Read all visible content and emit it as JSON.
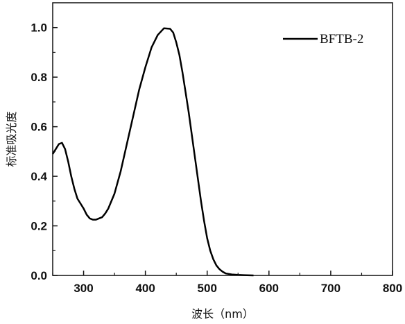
{
  "chart_data": {
    "type": "line",
    "xlabel": "波长（nm）",
    "ylabel": "标准吸光度",
    "xlim": [
      250,
      800
    ],
    "ylim": [
      0,
      1.1
    ],
    "x_ticks": [
      300,
      400,
      500,
      600,
      700,
      800
    ],
    "y_ticks": [
      0.0,
      0.2,
      0.4,
      0.6,
      0.8,
      1.0
    ],
    "x_tick_labels": [
      "300",
      "400",
      "500",
      "600",
      "700",
      "800"
    ],
    "y_tick_labels": [
      "0.0",
      "0.2",
      "0.4",
      "0.6",
      "0.8",
      "1.0"
    ],
    "grid": false,
    "legend_position": "top-right",
    "line_color": "#000000",
    "series": [
      {
        "name": "BFTB-2",
        "x": [
          250,
          255,
          260,
          265,
          270,
          275,
          280,
          285,
          290,
          295,
          300,
          305,
          310,
          315,
          320,
          325,
          330,
          335,
          340,
          350,
          360,
          370,
          380,
          390,
          400,
          410,
          420,
          430,
          440,
          445,
          450,
          455,
          460,
          465,
          470,
          475,
          480,
          485,
          490,
          495,
          500,
          505,
          510,
          515,
          520,
          525,
          530,
          540,
          550,
          560,
          575
        ],
        "y": [
          0.49,
          0.51,
          0.53,
          0.535,
          0.51,
          0.46,
          0.4,
          0.35,
          0.31,
          0.29,
          0.27,
          0.245,
          0.23,
          0.225,
          0.225,
          0.23,
          0.235,
          0.25,
          0.27,
          0.33,
          0.42,
          0.53,
          0.64,
          0.75,
          0.84,
          0.92,
          0.97,
          0.997,
          0.995,
          0.98,
          0.94,
          0.89,
          0.82,
          0.74,
          0.66,
          0.57,
          0.48,
          0.39,
          0.3,
          0.22,
          0.15,
          0.1,
          0.065,
          0.04,
          0.025,
          0.015,
          0.008,
          0.004,
          0.002,
          0.001,
          0.0
        ]
      }
    ]
  }
}
